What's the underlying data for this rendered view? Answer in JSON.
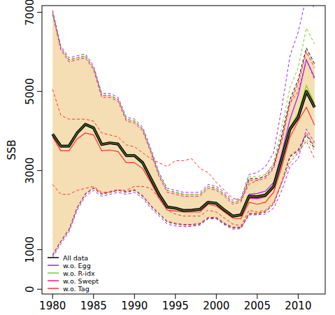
{
  "chart_data": {
    "type": "line",
    "y_label": "SSB",
    "x": [
      1980,
      1981,
      1982,
      1983,
      1984,
      1985,
      1986,
      1987,
      1988,
      1989,
      1990,
      1991,
      1992,
      1993,
      1994,
      1995,
      1996,
      1997,
      1998,
      1999,
      2000,
      2001,
      2002,
      2003,
      2004,
      2005,
      2006,
      2007,
      2008,
      2009,
      2010,
      2011,
      2012
    ],
    "xlim": [
      1978.7,
      2013.3
    ],
    "xticks": [
      1980,
      1985,
      1990,
      1995,
      2000,
      2005,
      2010
    ],
    "ylim": [
      -120,
      7170
    ],
    "yticks": [
      0,
      1000,
      3000,
      5000,
      7000
    ],
    "legend": "bottom-left",
    "series": [
      {
        "name": "All data",
        "color": "#000000",
        "values": [
          3920,
          3620,
          3620,
          3950,
          4170,
          4080,
          3660,
          3700,
          3670,
          3380,
          3380,
          3200,
          2800,
          2400,
          2080,
          2050,
          1990,
          2000,
          2020,
          2200,
          2170,
          2000,
          1850,
          1880,
          2350,
          2340,
          2380,
          2600,
          3300,
          4050,
          4350,
          5000,
          4600
        ],
        "upper": [
          7000,
          6100,
          5800,
          5850,
          5900,
          5600,
          4900,
          4900,
          4800,
          4300,
          4250,
          4050,
          3500,
          2900,
          2500,
          2450,
          2400,
          2400,
          2400,
          2600,
          2550,
          2400,
          2200,
          2250,
          2800,
          2800,
          2850,
          3100,
          3900,
          4800,
          5300,
          6100,
          5700
        ],
        "lower": [
          850,
          1200,
          1500,
          2050,
          2400,
          2550,
          2400,
          2450,
          2500,
          2450,
          2500,
          2350,
          2100,
          1900,
          1700,
          1650,
          1620,
          1620,
          1650,
          1800,
          1800,
          1650,
          1550,
          1550,
          1900,
          1900,
          1950,
          2150,
          2700,
          3350,
          3500,
          3900,
          3550
        ]
      },
      {
        "name": "w.o. Egg",
        "color": "#a020f0",
        "values": [
          3900,
          3600,
          3600,
          3930,
          4150,
          4060,
          3640,
          3680,
          3650,
          3360,
          3360,
          3180,
          2790,
          2390,
          2070,
          2040,
          1980,
          1990,
          2010,
          2190,
          2160,
          1990,
          1840,
          1870,
          2400,
          2420,
          2480,
          2700,
          3450,
          4300,
          4900,
          5800,
          5350
        ],
        "upper": [
          7050,
          6150,
          5850,
          5900,
          5950,
          5650,
          4950,
          4950,
          4850,
          4350,
          4300,
          4100,
          3550,
          2950,
          2550,
          2500,
          2450,
          2450,
          2450,
          2650,
          2600,
          2450,
          2250,
          2300,
          2900,
          2950,
          3100,
          3450,
          4600,
          5900,
          6500,
          7400,
          7100
        ],
        "lower": [
          800,
          1150,
          1450,
          2000,
          2350,
          2500,
          2350,
          2400,
          2450,
          2400,
          2450,
          2300,
          2050,
          1850,
          1650,
          1600,
          1580,
          1590,
          1620,
          1780,
          1780,
          1630,
          1520,
          1530,
          1880,
          1880,
          1900,
          2050,
          2500,
          3100,
          3300,
          4050,
          3700
        ]
      },
      {
        "name": "w.o. R-idx",
        "color": "#7ccd1c",
        "values": [
          3930,
          3630,
          3630,
          3960,
          4180,
          4090,
          3670,
          3710,
          3680,
          3390,
          3390,
          3210,
          2810,
          2410,
          2090,
          2060,
          2000,
          2010,
          2030,
          2210,
          2180,
          2010,
          1860,
          1890,
          2360,
          2360,
          2400,
          2630,
          3350,
          4100,
          4450,
          5150,
          4700
        ],
        "upper": [
          7000,
          6100,
          5800,
          5850,
          5900,
          5600,
          4900,
          4900,
          4800,
          4300,
          4250,
          4050,
          3500,
          2900,
          2500,
          2450,
          2400,
          2400,
          2400,
          2600,
          2550,
          2400,
          2200,
          2250,
          2850,
          2850,
          2900,
          3200,
          4100,
          5100,
          5600,
          6600,
          6200
        ],
        "lower": [
          860,
          1210,
          1510,
          2060,
          2410,
          2560,
          2410,
          2460,
          2510,
          2460,
          2510,
          2360,
          2110,
          1910,
          1710,
          1660,
          1630,
          1630,
          1660,
          1810,
          1810,
          1660,
          1560,
          1560,
          1910,
          1910,
          1960,
          2150,
          2700,
          3300,
          3450,
          3800,
          3500
        ]
      },
      {
        "name": "w.o. Swept",
        "color": "#ff1493",
        "values": [
          3910,
          3610,
          3610,
          3940,
          4160,
          4070,
          3650,
          3690,
          3660,
          3370,
          3370,
          3190,
          2790,
          2390,
          2070,
          2040,
          1980,
          1990,
          2010,
          2190,
          2160,
          1990,
          1840,
          1860,
          2300,
          2290,
          2330,
          2560,
          3250,
          4000,
          4300,
          4950,
          4600
        ],
        "upper": [
          6950,
          6050,
          5750,
          5800,
          5850,
          5550,
          4850,
          4850,
          4750,
          4250,
          4200,
          4000,
          3450,
          2850,
          2450,
          2400,
          2350,
          2350,
          2350,
          2550,
          2500,
          2350,
          2150,
          2200,
          2750,
          2750,
          2800,
          3050,
          3800,
          4700,
          5200,
          6000,
          5600
        ],
        "lower": [
          870,
          1220,
          1520,
          2070,
          2420,
          2570,
          2420,
          2470,
          2520,
          2470,
          2520,
          2370,
          2120,
          1920,
          1720,
          1670,
          1640,
          1640,
          1670,
          1820,
          1820,
          1670,
          1570,
          1570,
          1920,
          1920,
          1970,
          2160,
          2720,
          3380,
          3530,
          3950,
          3600
        ]
      },
      {
        "name": "w.o. Tag",
        "color": "#ff3030",
        "values": [
          3850,
          3500,
          3500,
          3800,
          3950,
          3900,
          3500,
          3520,
          3480,
          3200,
          3200,
          3050,
          2700,
          2300,
          2000,
          1980,
          1950,
          1950,
          1950,
          2150,
          2100,
          1950,
          1800,
          1780,
          2200,
          2150,
          2200,
          2450,
          3100,
          3850,
          4250,
          4600,
          4150
        ],
        "upper": [
          5050,
          4400,
          4300,
          4300,
          4300,
          4250,
          3950,
          3900,
          3850,
          3650,
          3600,
          3450,
          3300,
          3200,
          3100,
          3250,
          3250,
          3300,
          3050,
          2950,
          2700,
          2500,
          2300,
          2250,
          2650,
          2750,
          2900,
          3150,
          3750,
          4700,
          5000,
          5800,
          5300
        ],
        "lower": [
          2650,
          2400,
          2400,
          2500,
          2550,
          2600,
          2450,
          2450,
          2500,
          2500,
          2600,
          2600,
          2550,
          2300,
          2000,
          1900,
          1850,
          1850,
          1850,
          2000,
          1950,
          1800,
          1650,
          1600,
          2000,
          1950,
          2000,
          2200,
          2700,
          3200,
          3450,
          3750,
          3300
        ]
      }
    ]
  }
}
